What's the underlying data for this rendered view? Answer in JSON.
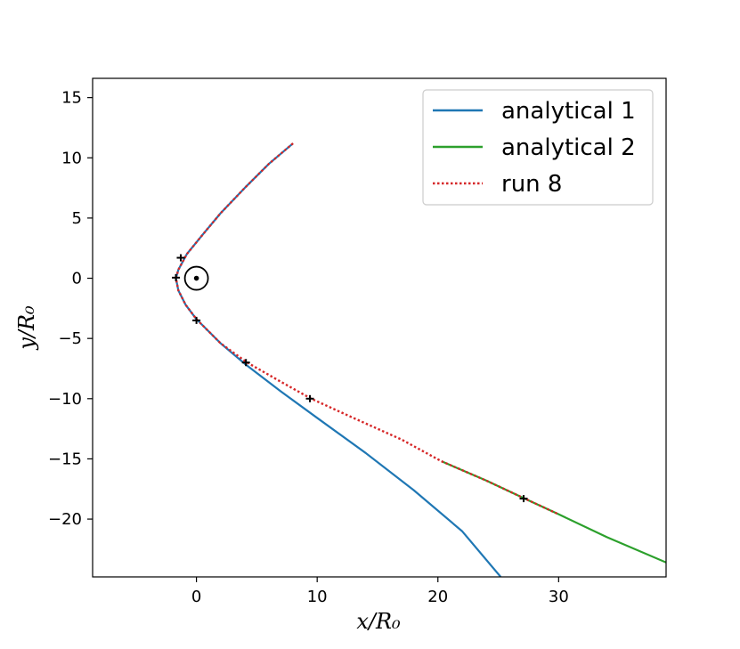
{
  "chart_data": {
    "type": "line",
    "xlabel": "x/R₀",
    "ylabel": "y/R₀",
    "xlim": [
      -8.6,
      38.9
    ],
    "ylim": [
      -24.8,
      16.6
    ],
    "x_ticks": [
      0,
      10,
      20,
      30
    ],
    "y_ticks": [
      15,
      10,
      5,
      0,
      -5,
      -10,
      -15,
      -20
    ],
    "x_tick_labels": [
      "0",
      "10",
      "20",
      "30"
    ],
    "y_tick_labels": [
      "15",
      "10",
      "5",
      "0",
      "−5",
      "−10",
      "−15",
      "−20"
    ],
    "grid": false,
    "legend": {
      "position": "top-right",
      "entries": [
        {
          "label": "analytical 1",
          "color": "#1f77b4",
          "style": "solid"
        },
        {
          "label": "analytical 2",
          "color": "#2ca02c",
          "style": "solid"
        },
        {
          "label": "run 8",
          "color": "#d62728",
          "style": "dotted"
        }
      ]
    },
    "series": [
      {
        "name": "analytical 1",
        "color": "#1f77b4",
        "style": "solid",
        "points": [
          [
            8.0,
            11.2
          ],
          [
            6.0,
            9.5
          ],
          [
            4.0,
            7.5
          ],
          [
            2.0,
            5.4
          ],
          [
            0.5,
            3.6
          ],
          [
            -0.8,
            2.0
          ],
          [
            -1.5,
            0.7
          ],
          [
            -1.7,
            0.0
          ],
          [
            -1.5,
            -1.0
          ],
          [
            -0.9,
            -2.2
          ],
          [
            0.0,
            -3.4
          ],
          [
            2.0,
            -5.4
          ],
          [
            4.0,
            -7.1
          ],
          [
            7.0,
            -9.4
          ],
          [
            10.0,
            -11.6
          ],
          [
            14.0,
            -14.5
          ],
          [
            18.0,
            -17.6
          ],
          [
            22.0,
            -21.0
          ],
          [
            25.2,
            -24.8
          ]
        ]
      },
      {
        "name": "analytical 2",
        "color": "#2ca02c",
        "style": "solid",
        "points": [
          [
            20.3,
            -15.2
          ],
          [
            24.0,
            -16.8
          ],
          [
            27.2,
            -18.3
          ],
          [
            30.0,
            -19.6
          ],
          [
            34.0,
            -21.5
          ],
          [
            38.9,
            -23.6
          ]
        ]
      },
      {
        "name": "run 8",
        "color": "#d62728",
        "style": "dotted",
        "points": [
          [
            8.0,
            11.2
          ],
          [
            6.0,
            9.5
          ],
          [
            4.0,
            7.5
          ],
          [
            2.0,
            5.4
          ],
          [
            0.5,
            3.6
          ],
          [
            -0.8,
            2.0
          ],
          [
            -1.5,
            0.7
          ],
          [
            -1.7,
            0.0
          ],
          [
            -1.5,
            -1.0
          ],
          [
            -0.9,
            -2.2
          ],
          [
            0.0,
            -3.4
          ],
          [
            2.0,
            -5.4
          ],
          [
            4.2,
            -7.0
          ],
          [
            7.0,
            -8.6
          ],
          [
            9.5,
            -10.0
          ],
          [
            13.0,
            -11.6
          ],
          [
            17.0,
            -13.4
          ],
          [
            20.3,
            -15.2
          ],
          [
            24.0,
            -16.8
          ],
          [
            27.2,
            -18.3
          ],
          [
            30.0,
            -19.6
          ]
        ]
      }
    ],
    "markers": [
      {
        "x": -1.3,
        "y": 1.7
      },
      {
        "x": -1.7,
        "y": 0.05
      },
      {
        "x": 0.0,
        "y": -3.5
      },
      {
        "x": 4.1,
        "y": -7.0
      },
      {
        "x": 9.4,
        "y": -10.0
      },
      {
        "x": 27.1,
        "y": -18.3
      }
    ],
    "sun_symbol": {
      "x": 0,
      "y": 0,
      "symbol": "⊙"
    }
  }
}
